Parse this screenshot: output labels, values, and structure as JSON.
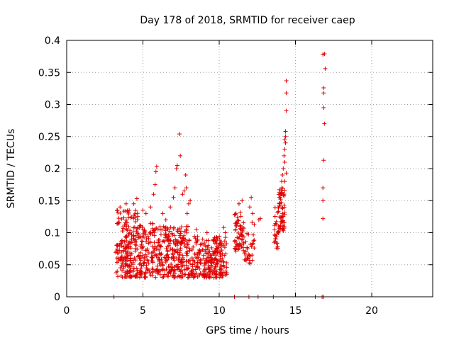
{
  "chart_data": {
    "type": "scatter",
    "title": "Day 178 of 2018, SRMTID for receiver caep",
    "xlabel": "GPS time / hours",
    "ylabel": "SRMTID / TECUs",
    "xlim": [
      0,
      24
    ],
    "ylim": [
      0,
      0.4
    ],
    "xticks": [
      0,
      5,
      10,
      15,
      20
    ],
    "yticks": [
      0,
      0.05,
      0.1,
      0.15,
      0.2,
      0.25,
      0.3,
      0.35,
      0.4
    ],
    "grid": true,
    "marker": "+",
    "color": "#e00000",
    "series": [
      {
        "name": "SRMTID",
        "clusters": [
          {
            "x_start": 3.2,
            "x_end": 4.7,
            "y_min": 0.03,
            "y_max": 0.135,
            "count": 200
          },
          {
            "x_start": 4.7,
            "x_end": 6.0,
            "y_min": 0.03,
            "y_max": 0.115,
            "count": 130
          },
          {
            "x_start": 6.0,
            "x_end": 8.0,
            "y_min": 0.03,
            "y_max": 0.11,
            "count": 230
          },
          {
            "x_start": 8.0,
            "x_end": 10.5,
            "y_min": 0.03,
            "y_max": 0.095,
            "count": 260
          },
          {
            "x_start": 11.0,
            "x_end": 11.6,
            "y_min": 0.07,
            "y_max": 0.14,
            "count": 55
          },
          {
            "x_start": 11.6,
            "x_end": 12.3,
            "y_min": 0.05,
            "y_max": 0.12,
            "count": 35
          },
          {
            "x_start": 13.6,
            "x_end": 13.9,
            "y_min": 0.075,
            "y_max": 0.14,
            "count": 25
          },
          {
            "x_start": 13.9,
            "x_end": 14.3,
            "y_min": 0.1,
            "y_max": 0.17,
            "count": 55
          }
        ],
        "points": [
          [
            3.3,
            0.135
          ],
          [
            3.5,
            0.14
          ],
          [
            3.9,
            0.145
          ],
          [
            4.1,
            0.135
          ],
          [
            4.4,
            0.145
          ],
          [
            4.6,
            0.153
          ],
          [
            5.0,
            0.135
          ],
          [
            5.2,
            0.13
          ],
          [
            5.5,
            0.14
          ],
          [
            5.7,
            0.16
          ],
          [
            5.8,
            0.175
          ],
          [
            5.85,
            0.195
          ],
          [
            5.9,
            0.203
          ],
          [
            6.3,
            0.13
          ],
          [
            6.5,
            0.12
          ],
          [
            6.8,
            0.14
          ],
          [
            7.0,
            0.155
          ],
          [
            7.1,
            0.17
          ],
          [
            7.2,
            0.2
          ],
          [
            7.25,
            0.205
          ],
          [
            7.4,
            0.254
          ],
          [
            7.45,
            0.22
          ],
          [
            7.6,
            0.16
          ],
          [
            7.7,
            0.165
          ],
          [
            7.8,
            0.19
          ],
          [
            7.85,
            0.17
          ],
          [
            7.9,
            0.13
          ],
          [
            8.0,
            0.145
          ],
          [
            8.1,
            0.15
          ],
          [
            8.5,
            0.105
          ],
          [
            9.2,
            0.1
          ],
          [
            10.3,
            0.108
          ],
          [
            10.4,
            0.1
          ],
          [
            11.1,
            0.13
          ],
          [
            11.3,
            0.145
          ],
          [
            11.5,
            0.15
          ],
          [
            12.0,
            0.14
          ],
          [
            12.1,
            0.155
          ],
          [
            12.2,
            0.13
          ],
          [
            12.6,
            0.12
          ],
          [
            12.7,
            0.122
          ],
          [
            13.6,
            0.085
          ],
          [
            13.7,
            0.09
          ],
          [
            13.8,
            0.098
          ],
          [
            14.0,
            0.155
          ],
          [
            14.05,
            0.16
          ],
          [
            14.1,
            0.18
          ],
          [
            14.15,
            0.19
          ],
          [
            14.2,
            0.2
          ],
          [
            14.25,
            0.22
          ],
          [
            14.3,
            0.23
          ],
          [
            14.35,
            0.24
          ],
          [
            14.35,
            0.258
          ],
          [
            14.4,
            0.29
          ],
          [
            14.4,
            0.318
          ],
          [
            14.4,
            0.337
          ],
          [
            14.3,
            0.245
          ],
          [
            14.35,
            0.25
          ],
          [
            14.3,
            0.21
          ],
          [
            14.4,
            0.193
          ],
          [
            14.3,
            0.18
          ],
          [
            16.8,
            0.122
          ],
          [
            16.8,
            0.15
          ],
          [
            16.8,
            0.17
          ],
          [
            16.85,
            0.213
          ],
          [
            16.9,
            0.27
          ],
          [
            16.85,
            0.295
          ],
          [
            16.85,
            0.318
          ],
          [
            16.85,
            0.326
          ],
          [
            16.95,
            0.356
          ],
          [
            16.8,
            0.378
          ],
          [
            16.9,
            0.379
          ]
        ]
      },
      {
        "name": "zero markers",
        "points": [
          [
            3.1,
            0
          ],
          [
            11.0,
            0
          ],
          [
            11.95,
            0
          ],
          [
            12.55,
            0
          ],
          [
            13.55,
            0
          ],
          [
            16.3,
            0
          ],
          [
            16.75,
            0
          ],
          [
            16.85,
            0
          ]
        ]
      }
    ]
  }
}
